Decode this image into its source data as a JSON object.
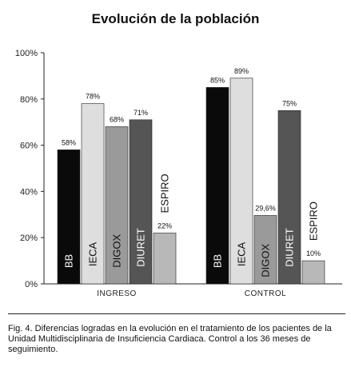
{
  "title": "Evolución de la población",
  "caption": "Fig. 4. Diferencias logradas en la evolución en el tratamiento de los pacientes de la Unidad Multidisciplinaria de Insuficiencia Cardiaca. Control a los 36 meses de seguimiento.",
  "chart_data": {
    "type": "bar",
    "title": "Evolución de la población",
    "xlabel": "",
    "ylabel": "",
    "ylim": [
      0,
      100
    ],
    "yticks": [
      "0%",
      "20%",
      "40%",
      "60%",
      "80%",
      "100%"
    ],
    "grid": false,
    "categories": [
      "INGRESO",
      "CONTROL"
    ],
    "series": [
      {
        "name": "BB",
        "color": "#0a0a0a",
        "text_color": "#ffffff",
        "values": [
          58,
          85
        ],
        "labels": [
          "58%",
          "85%"
        ]
      },
      {
        "name": "IECA",
        "color": "#dedede",
        "text_color": "#111111",
        "values": [
          78,
          89
        ],
        "labels": [
          "78%",
          "89%"
        ]
      },
      {
        "name": "DIGOX",
        "color": "#9a9a9a",
        "text_color": "#111111",
        "values": [
          68,
          29.6
        ],
        "labels": [
          "68%",
          "29,6%"
        ]
      },
      {
        "name": "DIURET",
        "color": "#555555",
        "text_color": "#ffffff",
        "values": [
          71,
          75
        ],
        "labels": [
          "71%",
          "75%"
        ]
      },
      {
        "name": "ESPIRO",
        "color": "#b8b8b8",
        "text_color": "#111111",
        "values": [
          22,
          10
        ],
        "labels": [
          "22%",
          "10%"
        ]
      }
    ]
  }
}
